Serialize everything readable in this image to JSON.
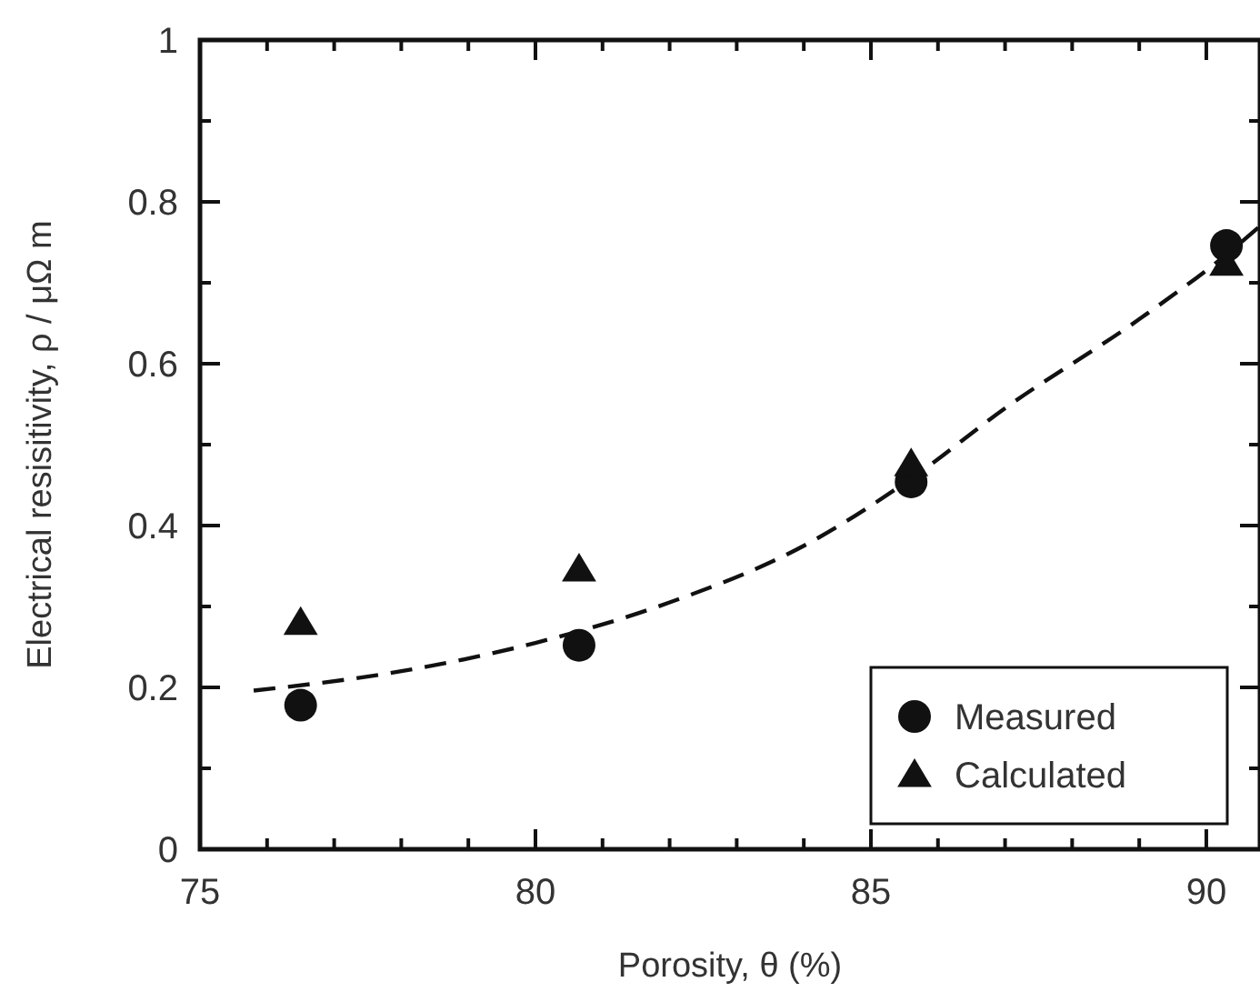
{
  "chart_data": {
    "type": "scatter",
    "xlabel": "Porosity, θ (%)",
    "ylabel": "Electrical resisitivity, ρ / μΩ m",
    "xlim": [
      75,
      90.8
    ],
    "ylim": [
      0,
      1
    ],
    "xticks": [
      75,
      {
        "value": 76,
        "label": null
      },
      {
        "value": 77,
        "label": null
      },
      {
        "value": 78,
        "label": null
      },
      {
        "value": 79,
        "label": null
      },
      80,
      {
        "value": 81,
        "label": null
      },
      {
        "value": 82,
        "label": null
      },
      {
        "value": 83,
        "label": null
      },
      {
        "value": 84,
        "label": null
      },
      85,
      {
        "value": 86,
        "label": null
      },
      {
        "value": 87,
        "label": null
      },
      {
        "value": 88,
        "label": null
      },
      {
        "value": 89,
        "label": null
      },
      90
    ],
    "yticks": [
      0,
      {
        "value": 0.1,
        "label": null
      },
      0.2,
      {
        "value": 0.3,
        "label": null
      },
      0.4,
      {
        "value": 0.5,
        "label": null
      },
      0.6,
      {
        "value": 0.7,
        "label": null
      },
      0.8,
      {
        "value": 0.9,
        "label": null
      },
      1
    ],
    "grid": false,
    "legend": "bottom right",
    "series": [
      {
        "name": "Measured",
        "marker": "circle",
        "color": "#111111",
        "x": [
          76.5,
          80.65,
          85.6,
          90.3
        ],
        "values": [
          0.178,
          0.252,
          0.454,
          0.746
        ]
      },
      {
        "name": "Calculated",
        "marker": "triangle",
        "color": "#111111",
        "x": [
          76.5,
          80.65,
          85.6,
          90.3
        ],
        "values": [
          0.28,
          0.346,
          0.476,
          0.724
        ]
      },
      {
        "type": "line",
        "line_style": "dashed",
        "color": "#111111",
        "x": [
          75.8,
          78,
          80,
          82,
          84,
          85.6,
          87,
          89,
          90.3,
          90.8
        ],
        "values": [
          0.196,
          0.22,
          0.255,
          0.305,
          0.375,
          0.458,
          0.545,
          0.655,
          0.735,
          0.77
        ]
      }
    ]
  }
}
